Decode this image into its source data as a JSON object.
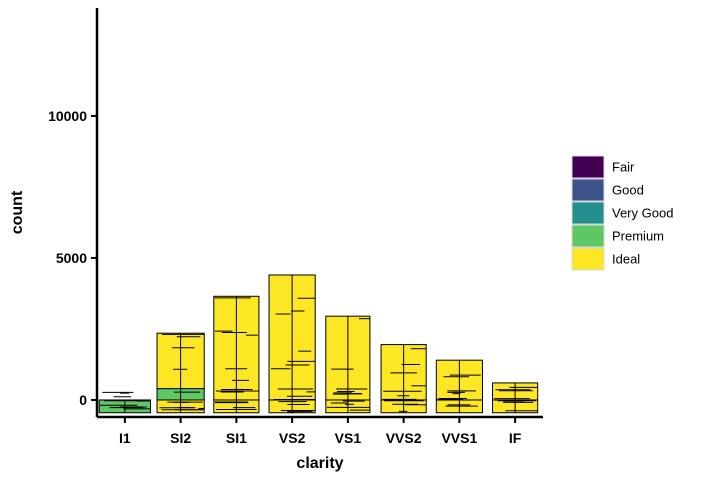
{
  "chart_data": {
    "type": "bar",
    "title": "",
    "xlabel": "clarity",
    "ylabel": "count",
    "categories": [
      "I1",
      "SI2",
      "SI1",
      "VS2",
      "VS1",
      "VVS2",
      "VVS1",
      "IF"
    ],
    "series": [
      {
        "name": "Fair",
        "color": "#440154",
        "values": [
          0,
          0,
          0,
          0,
          0,
          0,
          0,
          0
        ]
      },
      {
        "name": "Good",
        "color": "#3B528B",
        "values": [
          0,
          0,
          0,
          0,
          0,
          0,
          0,
          0
        ]
      },
      {
        "name": "Very Good",
        "color": "#21908C",
        "values": [
          0,
          0,
          0,
          0,
          0,
          0,
          0,
          0
        ]
      },
      {
        "name": "Premium",
        "color": "#5DC863",
        "values": [
          0,
          400,
          0,
          0,
          0,
          0,
          0,
          0
        ]
      },
      {
        "name": "Ideal",
        "color": "#FDE725",
        "values": [
          0,
          1950,
          3650,
          4400,
          2950,
          1950,
          1400,
          600
        ]
      }
    ],
    "negative_extent": [
      -450,
      -450,
      -450,
      -450,
      -450,
      -450,
      -450,
      -450
    ],
    "bar_width_scale": [
      1.0,
      0.92,
      0.88,
      0.9,
      0.86,
      0.88,
      0.9,
      0.88
    ],
    "yticks": [
      0,
      5000,
      10000
    ],
    "ytick_labels": [
      "0",
      "5000",
      "10000"
    ],
    "ylim": [
      -600,
      13800
    ],
    "legend_position": "right",
    "grid": false
  }
}
